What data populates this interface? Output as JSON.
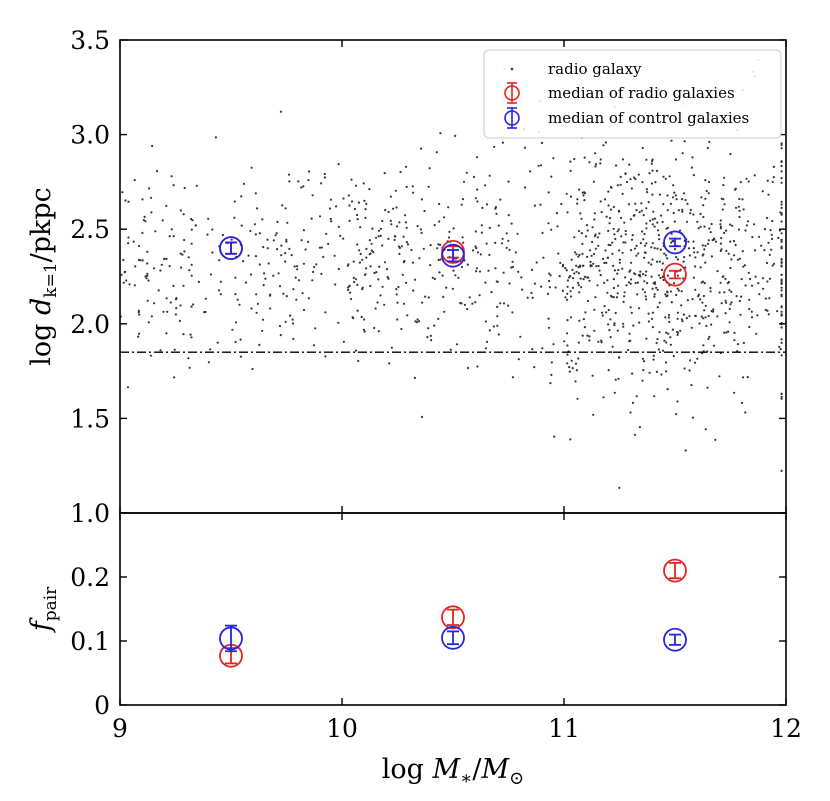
{
  "chart_data": {
    "type": "scatter",
    "xlabel": "log M*/M⊙",
    "x_ticks": [
      9,
      10,
      11,
      12
    ],
    "xlim": [
      9,
      12
    ],
    "legend_position": "top-right",
    "colors": {
      "radio": "#e8231e",
      "control": "#2424e8",
      "points": "#333333",
      "line": "#000000"
    },
    "top_panel": {
      "ylabel": "log d_k=1/pkpc",
      "ylim": [
        1.0,
        3.5
      ],
      "y_ticks": [
        1.0,
        1.5,
        2.0,
        2.5,
        3.0,
        3.5
      ],
      "threshold_line": 1.85,
      "legend": [
        "radio galaxy",
        "median of radio galaxies",
        "median of control galaxies"
      ],
      "radio_median": {
        "x": [
          9.5,
          10.5,
          11.5
        ],
        "y": [
          2.4,
          2.38,
          2.26
        ],
        "yerr": [
          0.03,
          0.03,
          0.02
        ]
      },
      "control_median": {
        "x": [
          9.5,
          10.5,
          11.5
        ],
        "y": [
          2.4,
          2.36,
          2.43
        ],
        "yerr": [
          0.03,
          0.03,
          0.02
        ]
      }
    },
    "bottom_panel": {
      "ylabel": "f_pair",
      "ylim": [
        0,
        0.3
      ],
      "y_ticks": [
        0,
        0.1,
        0.2
      ],
      "radio": {
        "x": [
          9.5,
          10.5,
          11.5
        ],
        "y": [
          0.077,
          0.137,
          0.21
        ],
        "yerr": [
          0.012,
          0.012,
          0.012
        ]
      },
      "control": {
        "x": [
          9.5,
          10.5,
          11.5
        ],
        "y": [
          0.104,
          0.105,
          0.102
        ],
        "yerr": [
          0.02,
          0.01,
          0.008
        ]
      }
    }
  }
}
